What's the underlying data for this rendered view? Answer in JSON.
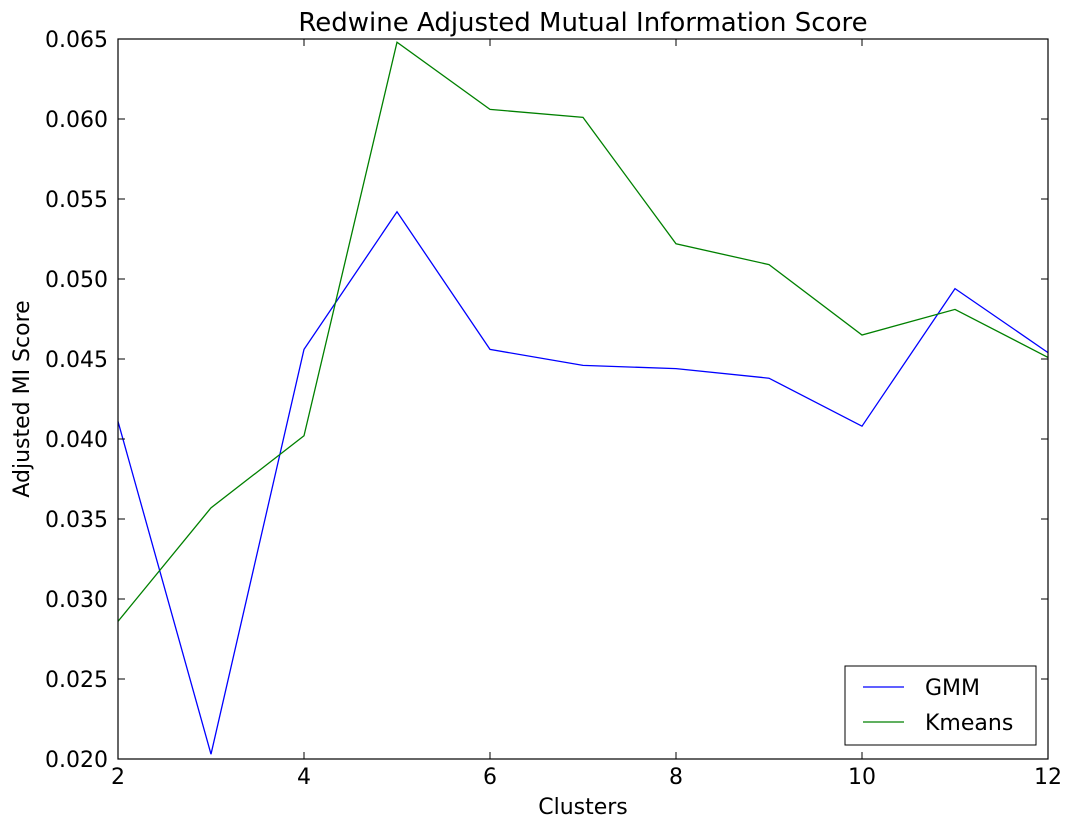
{
  "chart_data": {
    "type": "line",
    "title": "Redwine  Adjusted Mutual Information Score",
    "xlabel": "Clusters",
    "ylabel": "Adjusted MI Score",
    "x": [
      2,
      3,
      4,
      5,
      6,
      7,
      8,
      9,
      10,
      11,
      12
    ],
    "xlim": [
      2,
      12
    ],
    "ylim": [
      0.02,
      0.065
    ],
    "xticks": [
      2,
      4,
      6,
      8,
      10,
      12
    ],
    "xtick_labels": [
      "2",
      "4",
      "6",
      "8",
      "10",
      "12"
    ],
    "yticks": [
      0.02,
      0.025,
      0.03,
      0.035,
      0.04,
      0.045,
      0.05,
      0.055,
      0.06,
      0.065
    ],
    "ytick_labels": [
      "0.020",
      "0.025",
      "0.030",
      "0.035",
      "0.040",
      "0.045",
      "0.050",
      "0.055",
      "0.060",
      "0.065"
    ],
    "grid": false,
    "legend_position": "bottom-right",
    "series": [
      {
        "name": "GMM",
        "color": "#0000ff",
        "values": [
          0.0411,
          0.0203,
          0.0456,
          0.0542,
          0.0456,
          0.0446,
          0.0444,
          0.0438,
          0.0408,
          0.0494,
          0.0454
        ]
      },
      {
        "name": "Kmeans",
        "color": "#008000",
        "values": [
          0.0286,
          0.0357,
          0.0402,
          0.0648,
          0.0606,
          0.0601,
          0.0522,
          0.0509,
          0.0465,
          0.0481,
          0.0451
        ]
      }
    ]
  }
}
